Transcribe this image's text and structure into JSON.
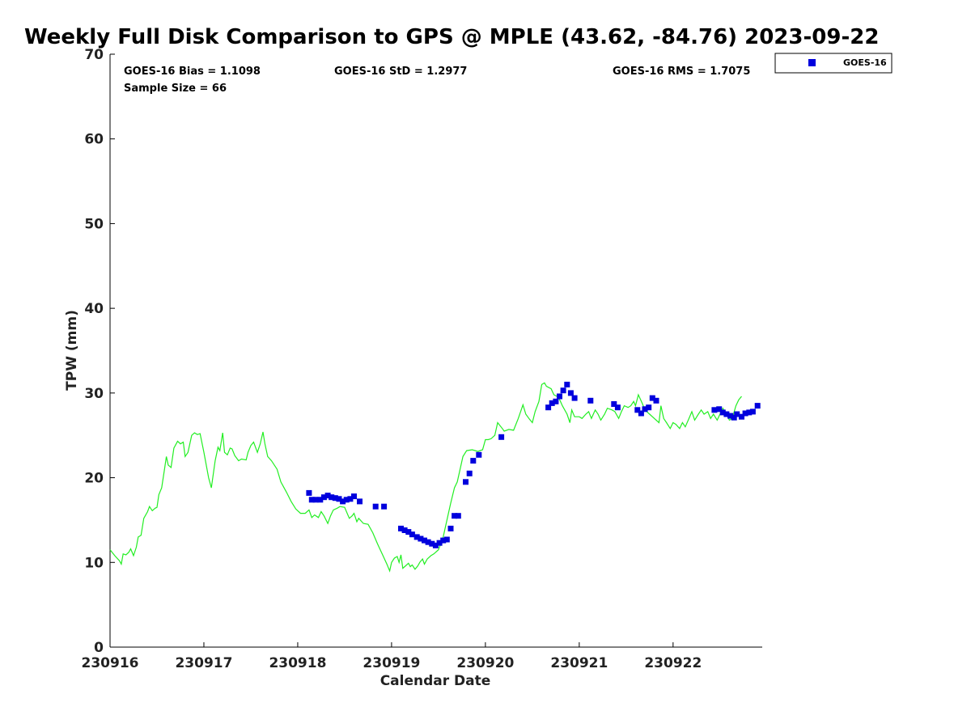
{
  "chart_data": {
    "type": "line",
    "title": "Weekly Full Disk Comparison to GPS @ MPLE (43.62, -84.76) 2023-09-22",
    "xlabel": "Calendar Date",
    "ylabel": "TPW (mm)",
    "xlim": [
      0,
      6.95
    ],
    "ylim": [
      0,
      70
    ],
    "x_tick_labels": [
      {
        "x": 0,
        "label": "230916"
      },
      {
        "x": 1,
        "label": "230917"
      },
      {
        "x": 2,
        "label": "230918"
      },
      {
        "x": 3,
        "label": "230919"
      },
      {
        "x": 4,
        "label": "230920"
      },
      {
        "x": 5,
        "label": "230921"
      },
      {
        "x": 6,
        "label": "230922"
      }
    ],
    "y_ticks": [
      0,
      10,
      20,
      30,
      40,
      50,
      60,
      70
    ],
    "stats": {
      "bias": "GOES-16 Bias = 1.1098",
      "std": "GOES-16 StD = 1.2977",
      "rms": "GOES-16 RMS = 1.7075",
      "sample_size": "Sample Size = 66"
    },
    "legend": [
      {
        "name": "GOES-16",
        "color": "#0000dd",
        "marker": "square"
      }
    ],
    "colors": {
      "gps_line": "#22ee22",
      "goes_marker": "#0000dd",
      "axis": "#000000"
    },
    "series": [
      {
        "name": "GPS",
        "type": "line",
        "points": [
          [
            0.0,
            11.5
          ],
          [
            0.05,
            10.8
          ],
          [
            0.1,
            10.2
          ],
          [
            0.12,
            9.8
          ],
          [
            0.14,
            11.0
          ],
          [
            0.17,
            10.9
          ],
          [
            0.2,
            11.2
          ],
          [
            0.22,
            11.6
          ],
          [
            0.25,
            10.8
          ],
          [
            0.28,
            11.8
          ],
          [
            0.3,
            13.0
          ],
          [
            0.33,
            13.2
          ],
          [
            0.36,
            15.2
          ],
          [
            0.4,
            16.0
          ],
          [
            0.42,
            16.6
          ],
          [
            0.45,
            16.1
          ],
          [
            0.48,
            16.4
          ],
          [
            0.5,
            16.5
          ],
          [
            0.52,
            18.0
          ],
          [
            0.55,
            18.8
          ],
          [
            0.58,
            21.0
          ],
          [
            0.6,
            22.5
          ],
          [
            0.62,
            21.5
          ],
          [
            0.65,
            21.2
          ],
          [
            0.68,
            23.5
          ],
          [
            0.72,
            24.3
          ],
          [
            0.75,
            24.0
          ],
          [
            0.78,
            24.2
          ],
          [
            0.8,
            22.5
          ],
          [
            0.83,
            23.0
          ],
          [
            0.87,
            25.0
          ],
          [
            0.9,
            25.3
          ],
          [
            0.93,
            25.1
          ],
          [
            0.96,
            25.2
          ],
          [
            1.0,
            23.0
          ],
          [
            1.05,
            20.0
          ],
          [
            1.08,
            18.8
          ],
          [
            1.12,
            22.0
          ],
          [
            1.15,
            23.6
          ],
          [
            1.17,
            23.2
          ],
          [
            1.2,
            25.3
          ],
          [
            1.22,
            23.0
          ],
          [
            1.25,
            22.7
          ],
          [
            1.28,
            23.5
          ],
          [
            1.3,
            23.4
          ],
          [
            1.33,
            22.6
          ],
          [
            1.37,
            22.0
          ],
          [
            1.4,
            22.2
          ],
          [
            1.45,
            22.1
          ],
          [
            1.47,
            23.0
          ],
          [
            1.5,
            23.8
          ],
          [
            1.53,
            24.2
          ],
          [
            1.57,
            23.0
          ],
          [
            1.6,
            24.0
          ],
          [
            1.63,
            25.4
          ],
          [
            1.65,
            24.0
          ],
          [
            1.68,
            22.5
          ],
          [
            1.72,
            22.0
          ],
          [
            1.78,
            21.0
          ],
          [
            1.82,
            19.5
          ],
          [
            1.88,
            18.3
          ],
          [
            1.93,
            17.2
          ],
          [
            1.98,
            16.3
          ],
          [
            2.03,
            15.8
          ],
          [
            2.08,
            15.8
          ],
          [
            2.12,
            16.2
          ],
          [
            2.15,
            15.3
          ],
          [
            2.18,
            15.6
          ],
          [
            2.22,
            15.3
          ],
          [
            2.25,
            16.0
          ],
          [
            2.28,
            15.5
          ],
          [
            2.32,
            14.6
          ],
          [
            2.35,
            15.5
          ],
          [
            2.38,
            16.2
          ],
          [
            2.42,
            16.4
          ],
          [
            2.45,
            16.6
          ],
          [
            2.5,
            16.5
          ],
          [
            2.55,
            15.2
          ],
          [
            2.58,
            15.5
          ],
          [
            2.6,
            15.8
          ],
          [
            2.63,
            14.8
          ],
          [
            2.65,
            15.2
          ],
          [
            2.7,
            14.6
          ],
          [
            2.75,
            14.5
          ],
          [
            2.8,
            13.5
          ],
          [
            2.85,
            12.2
          ],
          [
            2.9,
            11.0
          ],
          [
            2.95,
            9.8
          ],
          [
            2.98,
            9.0
          ],
          [
            3.0,
            10.0
          ],
          [
            3.03,
            10.5
          ],
          [
            3.06,
            10.7
          ],
          [
            3.08,
            10.0
          ],
          [
            3.1,
            10.9
          ],
          [
            3.12,
            9.3
          ],
          [
            3.15,
            9.6
          ],
          [
            3.18,
            9.9
          ],
          [
            3.2,
            9.5
          ],
          [
            3.22,
            9.7
          ],
          [
            3.25,
            9.2
          ],
          [
            3.28,
            9.6
          ],
          [
            3.3,
            10.0
          ],
          [
            3.33,
            10.4
          ],
          [
            3.35,
            9.8
          ],
          [
            3.38,
            10.4
          ],
          [
            3.42,
            10.8
          ],
          [
            3.45,
            11.0
          ],
          [
            3.5,
            11.5
          ],
          [
            3.55,
            13.0
          ],
          [
            3.6,
            15.5
          ],
          [
            3.63,
            17.0
          ],
          [
            3.67,
            18.8
          ],
          [
            3.7,
            19.5
          ],
          [
            3.73,
            21.0
          ],
          [
            3.76,
            22.5
          ],
          [
            3.8,
            23.2
          ],
          [
            3.86,
            23.3
          ],
          [
            3.92,
            23.1
          ],
          [
            3.97,
            23.3
          ],
          [
            4.0,
            24.5
          ],
          [
            4.03,
            24.5
          ],
          [
            4.06,
            24.6
          ],
          [
            4.1,
            25.0
          ],
          [
            4.13,
            26.5
          ],
          [
            4.18,
            25.8
          ],
          [
            4.2,
            25.5
          ],
          [
            4.25,
            25.7
          ],
          [
            4.3,
            25.6
          ],
          [
            4.35,
            27.0
          ],
          [
            4.4,
            28.6
          ],
          [
            4.43,
            27.5
          ],
          [
            4.47,
            26.9
          ],
          [
            4.5,
            26.5
          ],
          [
            4.53,
            27.8
          ],
          [
            4.57,
            29.0
          ],
          [
            4.6,
            31.0
          ],
          [
            4.63,
            31.2
          ],
          [
            4.65,
            30.8
          ],
          [
            4.7,
            30.5
          ],
          [
            4.73,
            29.8
          ],
          [
            4.78,
            29.5
          ],
          [
            4.82,
            28.5
          ],
          [
            4.87,
            27.5
          ],
          [
            4.9,
            26.5
          ],
          [
            4.92,
            28.0
          ],
          [
            4.95,
            27.2
          ],
          [
            5.0,
            27.2
          ],
          [
            5.03,
            27.0
          ],
          [
            5.07,
            27.5
          ],
          [
            5.1,
            27.8
          ],
          [
            5.13,
            27.0
          ],
          [
            5.17,
            28.0
          ],
          [
            5.2,
            27.5
          ],
          [
            5.23,
            26.8
          ],
          [
            5.27,
            27.5
          ],
          [
            5.3,
            28.2
          ],
          [
            5.35,
            28.0
          ],
          [
            5.38,
            27.8
          ],
          [
            5.42,
            27.0
          ],
          [
            5.45,
            27.8
          ],
          [
            5.48,
            28.5
          ],
          [
            5.52,
            28.3
          ],
          [
            5.55,
            28.5
          ],
          [
            5.58,
            29.0
          ],
          [
            5.6,
            28.5
          ],
          [
            5.63,
            29.8
          ],
          [
            5.67,
            28.8
          ],
          [
            5.7,
            28.0
          ],
          [
            5.75,
            27.5
          ],
          [
            5.8,
            27.0
          ],
          [
            5.85,
            26.5
          ],
          [
            5.87,
            28.5
          ],
          [
            5.9,
            27.0
          ],
          [
            5.93,
            26.5
          ],
          [
            5.97,
            25.8
          ],
          [
            6.0,
            26.5
          ],
          [
            6.03,
            26.3
          ],
          [
            6.07,
            25.8
          ],
          [
            6.1,
            26.5
          ],
          [
            6.13,
            26.0
          ],
          [
            6.17,
            27.0
          ],
          [
            6.2,
            27.8
          ],
          [
            6.23,
            26.8
          ],
          [
            6.27,
            27.5
          ],
          [
            6.3,
            28.0
          ],
          [
            6.33,
            27.5
          ],
          [
            6.37,
            27.8
          ],
          [
            6.4,
            27.0
          ],
          [
            6.43,
            27.5
          ],
          [
            6.47,
            26.8
          ],
          [
            6.5,
            27.5
          ],
          [
            6.53,
            28.2
          ],
          [
            6.57,
            27.5
          ],
          [
            6.6,
            26.8
          ],
          [
            6.63,
            27.0
          ],
          [
            6.67,
            28.5
          ],
          [
            6.7,
            29.2
          ],
          [
            6.73,
            29.6
          ]
        ]
      },
      {
        "name": "GOES-16",
        "type": "scatter",
        "points": [
          [
            2.12,
            18.2
          ],
          [
            2.15,
            17.4
          ],
          [
            2.19,
            17.4
          ],
          [
            2.24,
            17.4
          ],
          [
            2.28,
            17.7
          ],
          [
            2.32,
            17.9
          ],
          [
            2.36,
            17.7
          ],
          [
            2.4,
            17.6
          ],
          [
            2.44,
            17.5
          ],
          [
            2.48,
            17.2
          ],
          [
            2.52,
            17.4
          ],
          [
            2.56,
            17.5
          ],
          [
            2.6,
            17.8
          ],
          [
            2.66,
            17.2
          ],
          [
            2.83,
            16.6
          ],
          [
            2.92,
            16.6
          ],
          [
            3.1,
            14.0
          ],
          [
            3.14,
            13.8
          ],
          [
            3.18,
            13.6
          ],
          [
            3.22,
            13.3
          ],
          [
            3.27,
            13.0
          ],
          [
            3.31,
            12.8
          ],
          [
            3.35,
            12.6
          ],
          [
            3.39,
            12.4
          ],
          [
            3.43,
            12.2
          ],
          [
            3.47,
            12.0
          ],
          [
            3.51,
            12.3
          ],
          [
            3.55,
            12.6
          ],
          [
            3.59,
            12.7
          ],
          [
            3.63,
            14.0
          ],
          [
            3.67,
            15.5
          ],
          [
            3.71,
            15.5
          ],
          [
            3.79,
            19.5
          ],
          [
            3.83,
            20.5
          ],
          [
            3.87,
            22.0
          ],
          [
            3.93,
            22.7
          ],
          [
            4.17,
            24.8
          ],
          [
            4.67,
            28.3
          ],
          [
            4.71,
            28.8
          ],
          [
            4.75,
            29.0
          ],
          [
            4.79,
            29.6
          ],
          [
            4.83,
            30.3
          ],
          [
            4.87,
            31.0
          ],
          [
            4.91,
            30.0
          ],
          [
            4.95,
            29.4
          ],
          [
            5.12,
            29.1
          ],
          [
            5.37,
            28.7
          ],
          [
            5.41,
            28.3
          ],
          [
            5.62,
            28.0
          ],
          [
            5.66,
            27.6
          ],
          [
            5.7,
            28.1
          ],
          [
            5.74,
            28.3
          ],
          [
            5.78,
            29.4
          ],
          [
            5.82,
            29.1
          ],
          [
            6.44,
            28.0
          ],
          [
            6.49,
            28.1
          ],
          [
            6.53,
            27.7
          ],
          [
            6.57,
            27.5
          ],
          [
            6.61,
            27.3
          ],
          [
            6.65,
            27.1
          ],
          [
            6.68,
            27.5
          ],
          [
            6.73,
            27.2
          ],
          [
            6.77,
            27.6
          ],
          [
            6.81,
            27.7
          ],
          [
            6.85,
            27.8
          ],
          [
            6.9,
            28.5
          ]
        ]
      }
    ]
  }
}
